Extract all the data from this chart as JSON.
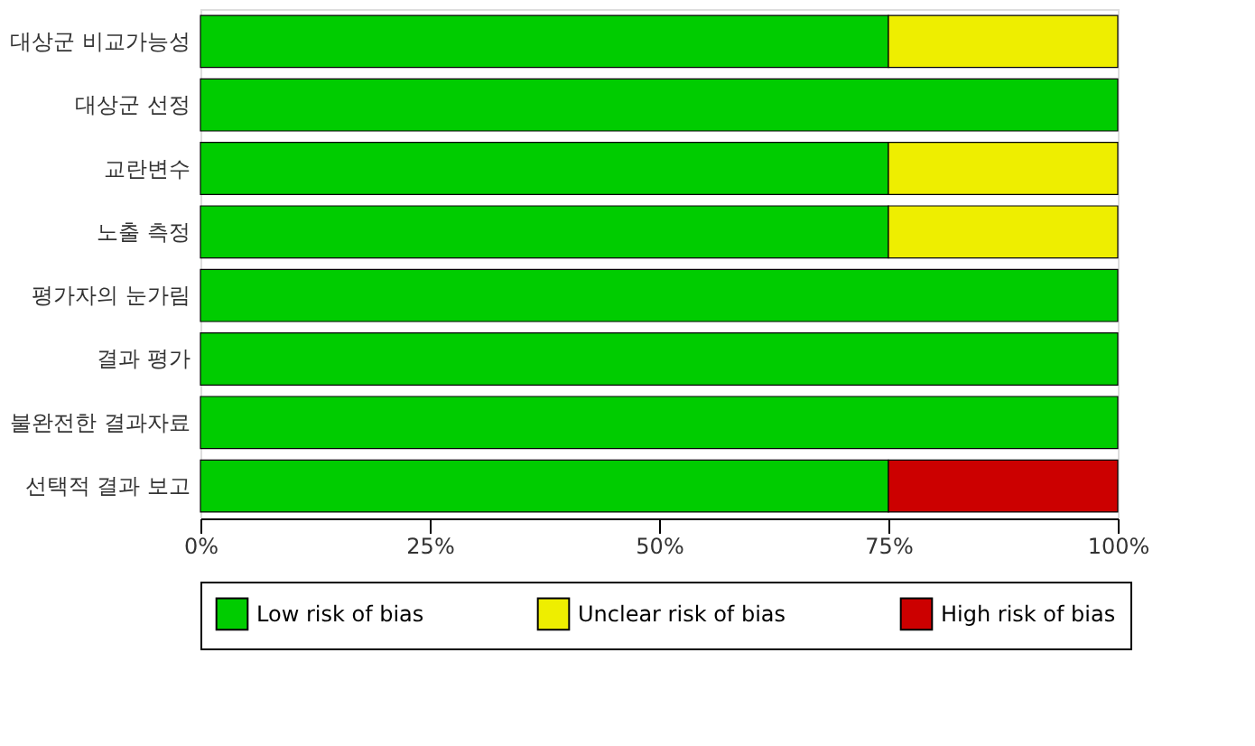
{
  "chart_data": {
    "type": "bar",
    "orientation": "horizontal",
    "stacked": true,
    "categories": [
      "대상군 비교가능성",
      "대상군 선정",
      "교란변수",
      "노출 측정",
      "평가자의 눈가림",
      "결과 평가",
      "불완전한 결과자료",
      "선택적 결과 보고"
    ],
    "series": [
      {
        "name": "Low risk of bias",
        "color": "#00cc00",
        "values": [
          75,
          100,
          75,
          75,
          100,
          100,
          100,
          75
        ]
      },
      {
        "name": "Unclear risk of bias",
        "color": "#eeee00",
        "values": [
          25,
          null,
          25,
          25,
          null,
          null,
          null,
          null
        ]
      },
      {
        "name": "High risk of bias",
        "color": "#cc0000",
        "values": [
          null,
          null,
          null,
          null,
          null,
          null,
          null,
          25
        ]
      }
    ],
    "xlim": [
      0,
      100
    ],
    "xticks": [
      {
        "value": 0,
        "label": "0%"
      },
      {
        "value": 25,
        "label": "25%"
      },
      {
        "value": 50,
        "label": "50%"
      },
      {
        "value": 75,
        "label": "75%"
      },
      {
        "value": 100,
        "label": "100%"
      }
    ],
    "grid": false,
    "legend": "bottom"
  }
}
